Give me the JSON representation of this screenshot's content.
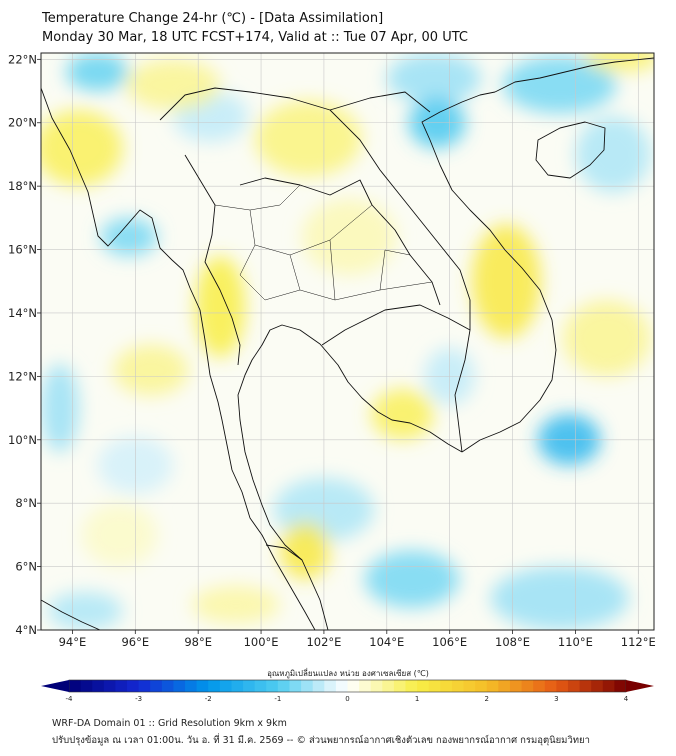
{
  "title": {
    "line1": "Temperature Change 24-hr (℃) - [Data Assimilation]",
    "line2": "Monday 30 Mar, 18 UTC FCST+174, Valid at :: Tue 07 Apr, 00 UTC"
  },
  "map_extent": {
    "lon_min": 93,
    "lon_max": 112.5,
    "lat_min": 4,
    "lat_max": 22.2
  },
  "lon_ticks": [
    {
      "value": 94,
      "label": "94°E"
    },
    {
      "value": 96,
      "label": "96°E"
    },
    {
      "value": 98,
      "label": "98°E"
    },
    {
      "value": 100,
      "label": "100°E"
    },
    {
      "value": 102,
      "label": "102°E"
    },
    {
      "value": 104,
      "label": "104°E"
    },
    {
      "value": 106,
      "label": "106°E"
    },
    {
      "value": 108,
      "label": "108°E"
    },
    {
      "value": 110,
      "label": "110°E"
    },
    {
      "value": 112,
      "label": "112°E"
    }
  ],
  "lat_ticks": [
    {
      "value": 22,
      "label": "22°N"
    },
    {
      "value": 20,
      "label": "20°N"
    },
    {
      "value": 18,
      "label": "18°N"
    },
    {
      "value": 16,
      "label": "16°N"
    },
    {
      "value": 14,
      "label": "14°N"
    },
    {
      "value": 12,
      "label": "12°N"
    },
    {
      "value": 10,
      "label": "10°N"
    },
    {
      "value": 8,
      "label": "8°N"
    },
    {
      "value": 6,
      "label": "6°N"
    },
    {
      "value": 4,
      "label": "4°N"
    }
  ],
  "field_blobs": [
    {
      "lon": 94.8,
      "lat": 21.6,
      "v": -0.9,
      "rlon": 1.0,
      "rlat": 0.6
    },
    {
      "lon": 105.5,
      "lat": 21.4,
      "v": -0.6,
      "rlon": 1.5,
      "rlat": 0.8
    },
    {
      "lon": 105.6,
      "lat": 20.0,
      "v": -1.1,
      "rlon": 0.9,
      "rlat": 0.8
    },
    {
      "lon": 109.5,
      "lat": 21.2,
      "v": -0.8,
      "rlon": 1.8,
      "rlat": 0.9
    },
    {
      "lon": 111.2,
      "lat": 19.0,
      "v": -0.5,
      "rlon": 1.2,
      "rlat": 1.2
    },
    {
      "lon": 95.8,
      "lat": 16.4,
      "v": -0.8,
      "rlon": 0.9,
      "rlat": 0.6
    },
    {
      "lon": 109.8,
      "lat": 10.0,
      "v": -1.4,
      "rlon": 1.0,
      "rlat": 0.8
    },
    {
      "lon": 106.0,
      "lat": 12.0,
      "v": -0.4,
      "rlon": 0.8,
      "rlat": 0.9
    },
    {
      "lon": 104.8,
      "lat": 5.6,
      "v": -0.8,
      "rlon": 1.5,
      "rlat": 0.9
    },
    {
      "lon": 102.0,
      "lat": 7.8,
      "v": -0.5,
      "rlon": 1.6,
      "rlat": 1.0
    },
    {
      "lon": 109.5,
      "lat": 5.0,
      "v": -0.6,
      "rlon": 2.2,
      "rlat": 1.0
    },
    {
      "lon": 94.4,
      "lat": 4.6,
      "v": -0.5,
      "rlon": 1.2,
      "rlat": 0.6
    },
    {
      "lon": 93.6,
      "lat": 11.0,
      "v": -0.6,
      "rlon": 0.6,
      "rlat": 1.4
    },
    {
      "lon": 96.0,
      "lat": 9.2,
      "v": -0.3,
      "rlon": 1.2,
      "rlat": 0.9
    },
    {
      "lon": 98.4,
      "lat": 20.2,
      "v": -0.4,
      "rlon": 1.2,
      "rlat": 0.8
    },
    {
      "lon": 94.2,
      "lat": 19.2,
      "v": 0.9,
      "rlon": 1.4,
      "rlat": 1.2
    },
    {
      "lon": 97.2,
      "lat": 21.2,
      "v": 0.6,
      "rlon": 1.5,
      "rlat": 0.8
    },
    {
      "lon": 101.5,
      "lat": 19.5,
      "v": 0.7,
      "rlon": 1.7,
      "rlat": 1.2
    },
    {
      "lon": 107.8,
      "lat": 15.0,
      "v": 1.1,
      "rlon": 1.1,
      "rlat": 1.8
    },
    {
      "lon": 98.7,
      "lat": 14.2,
      "v": 1.0,
      "rlon": 0.8,
      "rlat": 1.6
    },
    {
      "lon": 101.4,
      "lat": 6.5,
      "v": 1.1,
      "rlon": 0.8,
      "rlat": 0.9
    },
    {
      "lon": 104.5,
      "lat": 10.8,
      "v": 0.9,
      "rlon": 1.0,
      "rlat": 0.8
    },
    {
      "lon": 96.5,
      "lat": 12.2,
      "v": 0.6,
      "rlon": 1.2,
      "rlat": 0.8
    },
    {
      "lon": 111.0,
      "lat": 13.2,
      "v": 0.6,
      "rlon": 1.4,
      "rlat": 1.2
    },
    {
      "lon": 111.5,
      "lat": 22.1,
      "v": 0.8,
      "rlon": 1.2,
      "rlat": 0.5
    },
    {
      "lon": 102.8,
      "lat": 16.4,
      "v": 0.4,
      "rlon": 1.5,
      "rlat": 1.2
    },
    {
      "lon": 95.5,
      "lat": 7.0,
      "v": 0.3,
      "rlon": 1.2,
      "rlat": 1.0
    },
    {
      "lon": 99.2,
      "lat": 4.8,
      "v": 0.5,
      "rlon": 1.4,
      "rlat": 0.6
    }
  ],
  "colorbar": {
    "label": "อุณหภูมิเปลี่ยนแปลง หน่วย องศาเซลเซียส (℃)",
    "min": -4,
    "max": 4,
    "ticks": [
      "-4",
      "-3",
      "-2",
      "-1",
      "0",
      "1",
      "2",
      "3",
      "4"
    ]
  },
  "footer": {
    "line1": "WRF-DA Domain 01 :: Grid Resolution 9km x 9km",
    "line2": "ปรับปรุงข้อมูล ณ เวลา 01:00น. วัน อ. ที่ 31 มี.ค. 2569 -- © ส่วนพยากรณ์อากาศเชิงตัวเลข กองพยากรณ์อากาศ กรมอุตุนิยมวิทยา"
  },
  "colors": {
    "warm": "#f5ef4a",
    "cool": "#3cc0ea",
    "coastline": "#111111",
    "grid": "#c8c8c8"
  }
}
